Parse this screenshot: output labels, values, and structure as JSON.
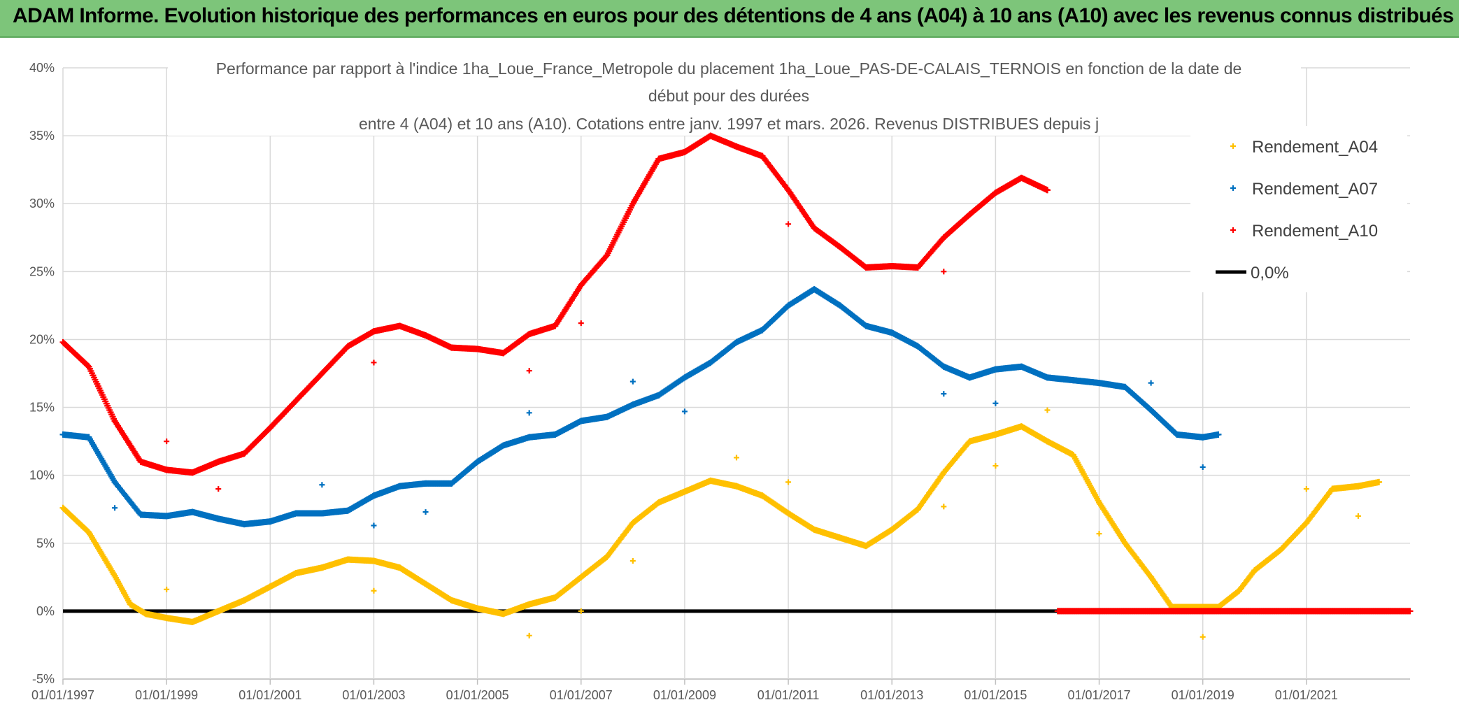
{
  "banner": {
    "title": "ADAM Informe. Evolution historique des performances en euros pour des détentions de 4 ans (A04) à 10 ans (A10) avec les revenus connus distribués"
  },
  "chart_data": {
    "type": "scatter",
    "title_lines": [
      "Performance par rapport à l'indice 1ha_Loue_France_Metropole  du placement 1ha_Loue_PAS-DE-CALAIS_TERNOIS en fonction de la date de",
      "début pour des durées",
      "entre 4 (A04) et 10 ans (A10). Cotations entre janv. 1997 et mars. 2026. Revenus DISTRIBUES depuis j"
    ],
    "xlim": [
      1997.0,
      2023.0
    ],
    "ylim": [
      -5,
      40
    ],
    "x_tick_labels": [
      "01/01/1997",
      "01/01/1999",
      "01/01/2001",
      "01/01/2003",
      "01/01/2005",
      "01/01/2007",
      "01/01/2009",
      "01/01/2011",
      "01/01/2013",
      "01/01/2015",
      "01/01/2017",
      "01/01/2019",
      "01/01/2021"
    ],
    "y_tick_labels": [
      "-5%",
      "0%",
      "5%",
      "10%",
      "15%",
      "20%",
      "25%",
      "30%",
      "35%",
      "40%"
    ],
    "series": [
      {
        "name": "Rendement_A04",
        "color": "#ffc000",
        "points": [
          [
            1997.0,
            7.6
          ],
          [
            1997.5,
            5.8
          ],
          [
            1998.0,
            2.6
          ],
          [
            1998.3,
            0.5
          ],
          [
            1998.6,
            -0.2
          ],
          [
            1999.0,
            -0.5
          ],
          [
            1999.5,
            -0.8
          ],
          [
            2000.0,
            0.0
          ],
          [
            2000.5,
            0.8
          ],
          [
            2001.0,
            1.8
          ],
          [
            2001.5,
            2.8
          ],
          [
            2002.0,
            3.2
          ],
          [
            2002.5,
            3.8
          ],
          [
            2003.0,
            3.7
          ],
          [
            2003.5,
            3.2
          ],
          [
            2004.0,
            2.0
          ],
          [
            2004.5,
            0.8
          ],
          [
            2005.0,
            0.2
          ],
          [
            2005.5,
            -0.2
          ],
          [
            2006.0,
            0.5
          ],
          [
            2006.5,
            1.0
          ],
          [
            2007.0,
            2.5
          ],
          [
            2007.5,
            4.0
          ],
          [
            2008.0,
            6.5
          ],
          [
            2008.5,
            8.0
          ],
          [
            2009.0,
            8.8
          ],
          [
            2009.5,
            9.6
          ],
          [
            2010.0,
            9.2
          ],
          [
            2010.5,
            8.5
          ],
          [
            2011.0,
            7.2
          ],
          [
            2011.5,
            6.0
          ],
          [
            2012.0,
            5.4
          ],
          [
            2012.5,
            4.8
          ],
          [
            2013.0,
            6.0
          ],
          [
            2013.5,
            7.5
          ],
          [
            2014.0,
            10.2
          ],
          [
            2014.5,
            12.5
          ],
          [
            2015.0,
            13.0
          ],
          [
            2015.5,
            13.6
          ],
          [
            2016.0,
            12.5
          ],
          [
            2016.5,
            11.5
          ],
          [
            2017.0,
            8.0
          ],
          [
            2017.5,
            5.0
          ],
          [
            2018.0,
            2.5
          ],
          [
            2018.4,
            0.3
          ],
          [
            2019.0,
            0.3
          ],
          [
            2019.3,
            0.3
          ],
          [
            2019.7,
            1.5
          ],
          [
            2020.0,
            3.0
          ],
          [
            2020.5,
            4.5
          ],
          [
            2021.0,
            6.5
          ],
          [
            2021.5,
            9.0
          ],
          [
            2022.0,
            9.2
          ],
          [
            2022.4,
            9.5
          ]
        ],
        "outliers": [
          [
            1999.0,
            1.6
          ],
          [
            2003.0,
            1.5
          ],
          [
            2006.0,
            -1.8
          ],
          [
            2007.0,
            0.0
          ],
          [
            2008.0,
            3.7
          ],
          [
            2010.0,
            11.3
          ],
          [
            2011.0,
            9.5
          ],
          [
            2014.0,
            7.7
          ],
          [
            2015.0,
            10.7
          ],
          [
            2016.0,
            14.8
          ],
          [
            2017.0,
            5.7
          ],
          [
            2019.0,
            -1.9
          ],
          [
            2021.0,
            9.0
          ],
          [
            2022.0,
            7.0
          ]
        ]
      },
      {
        "name": "Rendement_A07",
        "color": "#0070c0",
        "points": [
          [
            1997.0,
            13.0
          ],
          [
            1997.5,
            12.8
          ],
          [
            1998.0,
            9.5
          ],
          [
            1998.5,
            7.1
          ],
          [
            1999.0,
            7.0
          ],
          [
            1999.5,
            7.3
          ],
          [
            2000.0,
            6.8
          ],
          [
            2000.5,
            6.4
          ],
          [
            2001.0,
            6.6
          ],
          [
            2001.5,
            7.2
          ],
          [
            2002.0,
            7.2
          ],
          [
            2002.5,
            7.4
          ],
          [
            2003.0,
            8.5
          ],
          [
            2003.5,
            9.2
          ],
          [
            2004.0,
            9.4
          ],
          [
            2004.5,
            9.4
          ],
          [
            2005.0,
            11.0
          ],
          [
            2005.5,
            12.2
          ],
          [
            2006.0,
            12.8
          ],
          [
            2006.5,
            13.0
          ],
          [
            2007.0,
            14.0
          ],
          [
            2007.5,
            14.3
          ],
          [
            2008.0,
            15.2
          ],
          [
            2008.5,
            15.9
          ],
          [
            2009.0,
            17.2
          ],
          [
            2009.5,
            18.3
          ],
          [
            2010.0,
            19.8
          ],
          [
            2010.5,
            20.7
          ],
          [
            2011.0,
            22.5
          ],
          [
            2011.5,
            23.7
          ],
          [
            2012.0,
            22.5
          ],
          [
            2012.5,
            21.0
          ],
          [
            2013.0,
            20.5
          ],
          [
            2013.5,
            19.5
          ],
          [
            2014.0,
            18.0
          ],
          [
            2014.5,
            17.2
          ],
          [
            2015.0,
            17.8
          ],
          [
            2015.5,
            18.0
          ],
          [
            2016.0,
            17.2
          ],
          [
            2016.5,
            17.0
          ],
          [
            2017.0,
            16.8
          ],
          [
            2017.5,
            16.5
          ],
          [
            2018.0,
            14.8
          ],
          [
            2018.5,
            13.0
          ],
          [
            2019.0,
            12.8
          ],
          [
            2019.3,
            13.0
          ]
        ],
        "outliers": [
          [
            1998.0,
            7.6
          ],
          [
            2002.0,
            9.3
          ],
          [
            2003.0,
            6.3
          ],
          [
            2004.0,
            7.3
          ],
          [
            2006.0,
            14.6
          ],
          [
            2008.0,
            16.9
          ],
          [
            2009.0,
            14.7
          ],
          [
            2014.0,
            16.0
          ],
          [
            2015.0,
            15.3
          ],
          [
            2018.0,
            16.8
          ],
          [
            2019.0,
            10.6
          ]
        ]
      },
      {
        "name": "Rendement_A10",
        "color": "#ff0000",
        "points": [
          [
            1997.0,
            19.8
          ],
          [
            1997.5,
            18.0
          ],
          [
            1998.0,
            14.0
          ],
          [
            1998.5,
            11.0
          ],
          [
            1999.0,
            10.4
          ],
          [
            1999.5,
            10.2
          ],
          [
            2000.0,
            11.0
          ],
          [
            2000.5,
            11.6
          ],
          [
            2001.0,
            13.5
          ],
          [
            2001.5,
            15.5
          ],
          [
            2002.0,
            17.5
          ],
          [
            2002.5,
            19.5
          ],
          [
            2003.0,
            20.6
          ],
          [
            2003.5,
            21.0
          ],
          [
            2004.0,
            20.3
          ],
          [
            2004.5,
            19.4
          ],
          [
            2005.0,
            19.3
          ],
          [
            2005.5,
            19.0
          ],
          [
            2006.0,
            20.4
          ],
          [
            2006.5,
            21.0
          ],
          [
            2007.0,
            24.0
          ],
          [
            2007.5,
            26.2
          ],
          [
            2008.0,
            30.0
          ],
          [
            2008.5,
            33.3
          ],
          [
            2009.0,
            33.8
          ],
          [
            2009.5,
            35.0
          ],
          [
            2010.0,
            34.2
          ],
          [
            2010.5,
            33.5
          ],
          [
            2011.0,
            31.0
          ],
          [
            2011.5,
            28.2
          ],
          [
            2012.0,
            26.8
          ],
          [
            2012.5,
            25.3
          ],
          [
            2013.0,
            25.4
          ],
          [
            2013.5,
            25.3
          ],
          [
            2014.0,
            27.5
          ],
          [
            2014.5,
            29.2
          ],
          [
            2015.0,
            30.8
          ],
          [
            2015.5,
            31.9
          ],
          [
            2016.0,
            31.0
          ]
        ],
        "outliers": [
          [
            1999.0,
            12.5
          ],
          [
            2000.0,
            9.0
          ],
          [
            2003.0,
            18.3
          ],
          [
            2006.0,
            17.7
          ],
          [
            2007.0,
            21.2
          ],
          [
            2011.0,
            28.5
          ],
          [
            2014.0,
            25.0
          ]
        ],
        "zero_segment": [
          2016.2,
          2023.0
        ]
      },
      {
        "name": "0,0%",
        "color": "#000000",
        "type": "line",
        "x": [
          1997.0,
          2016.2
        ],
        "y": [
          0,
          0
        ]
      }
    ],
    "legend_position": "top-right"
  }
}
